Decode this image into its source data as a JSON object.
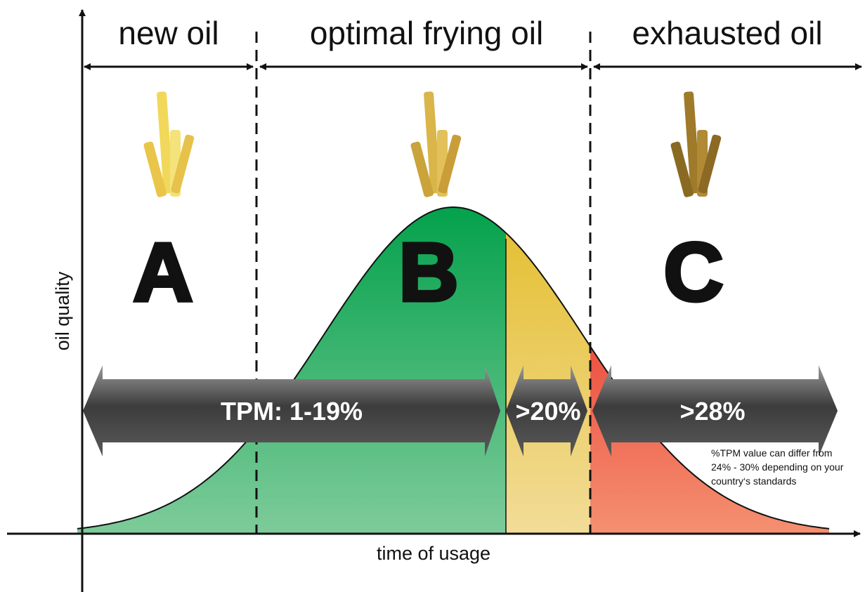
{
  "phases": [
    {
      "label": "new oil",
      "letter": "A"
    },
    {
      "label": "optimal frying oil",
      "letter": "B"
    },
    {
      "label": "exhausted oil",
      "letter": "C"
    }
  ],
  "axes": {
    "y_label": "oil quality",
    "x_label": "time of usage"
  },
  "tpm_arrows": [
    "TPM: 1-19%",
    ">20%",
    ">28%"
  ],
  "note": [
    "%TPM value can differ from",
    "24% - 30% depending on your",
    "country‘s standards"
  ]
}
